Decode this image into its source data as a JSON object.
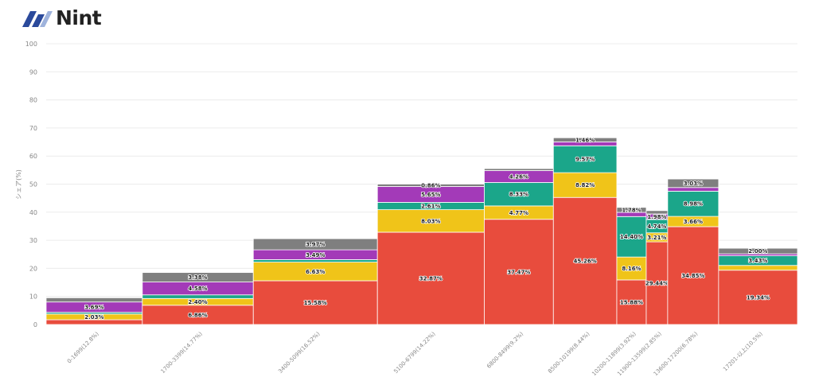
{
  "brand": {
    "name": "Nint",
    "logo_icon": "nint-logo-icon"
  },
  "chart_data": {
    "type": "bar",
    "subtype": "marimekko-stacked",
    "title": "",
    "xlabel": "",
    "ylabel": "シェア(%)",
    "ylim": [
      0,
      100
    ],
    "yticks": [
      0,
      10,
      20,
      30,
      40,
      50,
      60,
      70,
      80,
      90,
      100
    ],
    "grid": true,
    "legend": "none",
    "categories": [
      "0-1699(12.8%)",
      "1700-3399(14.77%)",
      "3400-5099(16.52%)",
      "5100-6799(14.22%)",
      "6800-8499(9.2%)",
      "8500-10199(8.44%)",
      "10200-11899(3.92%)",
      "11900-13599(2.85%)",
      "13600-17200(6.78%)",
      "17201-以上(10.5%)"
    ],
    "widths": [
      12.8,
      14.77,
      16.52,
      14.22,
      9.2,
      8.44,
      3.92,
      2.85,
      6.78,
      10.5
    ],
    "series": [
      {
        "name": "series-1",
        "color": "#e84c3d",
        "values": [
          1.7,
          6.86,
          15.58,
          32.87,
          37.47,
          45.26,
          15.88,
          29.44,
          34.85,
          19.34
        ],
        "labels": [
          "",
          "6.86%",
          "15.58%",
          "32.87%",
          "37.47%",
          "45.26%",
          "15.88%",
          "29.44%",
          "34.85%",
          "19.34%"
        ]
      },
      {
        "name": "series-2",
        "color": "#f0c419",
        "values": [
          2.03,
          2.4,
          6.63,
          8.03,
          4.77,
          8.82,
          8.16,
          3.21,
          3.66,
          1.7
        ],
        "labels": [
          "2.03%",
          "2.40%",
          "6.63%",
          "8.03%",
          "4.77%",
          "8.82%",
          "8.16%",
          "3.21%",
          "3.66%",
          ""
        ]
      },
      {
        "name": "series-3",
        "color": "#1ba68a",
        "values": [
          0.6,
          1.3,
          0.9,
          2.61,
          8.33,
          9.57,
          14.4,
          4.74,
          8.98,
          3.43
        ],
        "labels": [
          "",
          "",
          "",
          "2.61%",
          "8.33%",
          "9.57%",
          "14.40%",
          "4.74%",
          "8.98%",
          "3.43%"
        ]
      },
      {
        "name": "series-4",
        "color": "#a33ab8",
        "values": [
          3.69,
          4.58,
          3.49,
          5.65,
          4.26,
          1.4,
          1.5,
          1.98,
          1.3,
          0.7
        ],
        "labels": [
          "3.69%",
          "4.58%",
          "3.49%",
          "5.65%",
          "4.26%",
          "",
          "",
          "1.98%",
          "",
          ""
        ]
      },
      {
        "name": "series-5",
        "color": "#7f7f7f",
        "values": [
          1.5,
          3.38,
          3.97,
          0.86,
          0.7,
          1.46,
          1.78,
          1.2,
          3.03,
          2.0
        ],
        "labels": [
          "",
          "3.38%",
          "3.97%",
          "0.86%",
          "",
          "1.46%",
          "1.78%",
          "",
          "3.03%",
          "2.00%"
        ]
      }
    ]
  }
}
